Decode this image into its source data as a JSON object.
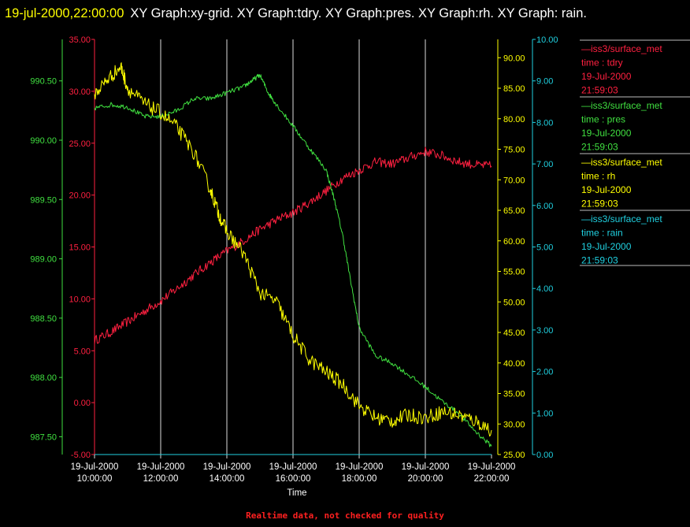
{
  "header": {
    "timestamp": "19-jul-2000,22:00:00",
    "graphs": "XY Graph:xy-grid.  XY Graph:tdry.  XY Graph:pres.  XY Graph:rh.  XY Graph: rain."
  },
  "footer": {
    "text": "Realtime data, not checked for quality"
  },
  "chart_data": {
    "type": "line",
    "xlabel": "Time",
    "x_tick_labels": [
      [
        "19-Jul-2000",
        "10:00:00"
      ],
      [
        "19-Jul-2000",
        "12:00:00"
      ],
      [
        "19-Jul-2000",
        "14:00:00"
      ],
      [
        "19-Jul-2000",
        "16:00:00"
      ],
      [
        "19-Jul-2000",
        "18:00:00"
      ],
      [
        "19-Jul-2000",
        "20:00:00"
      ],
      [
        "19-Jul-2000",
        "22:00:00"
      ]
    ],
    "x_hours": [
      10,
      12,
      14,
      16,
      18,
      20,
      22
    ],
    "xlim": [
      10,
      22
    ],
    "grid": true,
    "axes": {
      "tdry": {
        "ticks": [
          "35.00",
          "30.00",
          "25.00",
          "20.00",
          "15.00",
          "10.00",
          "5.00",
          "0.00",
          "-5.00"
        ],
        "ylim": [
          -5,
          35
        ],
        "color": "#ff2040"
      },
      "pres": {
        "ticks": [
          "990.50",
          "990.00",
          "989.50",
          "989.00",
          "988.50",
          "988.00",
          "987.50"
        ],
        "ylim": [
          987.35,
          990.85
        ],
        "color": "#40e040"
      },
      "rh": {
        "ticks": [
          "90.00",
          "85.00",
          "80.00",
          "75.00",
          "70.00",
          "65.00",
          "60.00",
          "55.00",
          "50.00",
          "45.00",
          "40.00",
          "35.00",
          "30.00",
          "25.00"
        ],
        "ylim": [
          25,
          93
        ],
        "color": "#ffff00"
      },
      "rain": {
        "ticks": [
          "10.00",
          "9.00",
          "8.00",
          "7.00",
          "6.00",
          "5.00",
          "4.00",
          "3.00",
          "2.00",
          "1.00",
          "0.00"
        ],
        "ylim": [
          0,
          10
        ],
        "color": "#20d0e0"
      }
    },
    "series": [
      {
        "key": "tdry",
        "color": "#ff2040",
        "points": [
          [
            10.0,
            6.0
          ],
          [
            10.5,
            6.8
          ],
          [
            11.0,
            7.8
          ],
          [
            11.5,
            8.8
          ],
          [
            12.0,
            9.8
          ],
          [
            12.5,
            11.0
          ],
          [
            13.0,
            12.3
          ],
          [
            13.5,
            13.5
          ],
          [
            14.0,
            14.6
          ],
          [
            14.5,
            15.6
          ],
          [
            15.0,
            16.7
          ],
          [
            15.5,
            17.6
          ],
          [
            16.0,
            18.3
          ],
          [
            16.5,
            19.3
          ],
          [
            17.0,
            20.4
          ],
          [
            17.5,
            21.6
          ],
          [
            18.0,
            22.4
          ],
          [
            18.5,
            23.2
          ],
          [
            19.0,
            23.0
          ],
          [
            19.5,
            23.6
          ],
          [
            20.0,
            24.2
          ],
          [
            20.5,
            23.8
          ],
          [
            21.0,
            23.2
          ],
          [
            21.5,
            22.9
          ],
          [
            22.0,
            22.8
          ]
        ]
      },
      {
        "key": "pres",
        "color": "#40e040",
        "points": [
          [
            10.0,
            990.27
          ],
          [
            10.5,
            990.3
          ],
          [
            11.0,
            990.28
          ],
          [
            11.5,
            990.2
          ],
          [
            12.0,
            990.2
          ],
          [
            12.5,
            990.25
          ],
          [
            13.0,
            990.35
          ],
          [
            13.5,
            990.35
          ],
          [
            14.0,
            990.4
          ],
          [
            14.5,
            990.45
          ],
          [
            14.75,
            990.5
          ],
          [
            15.0,
            990.55
          ],
          [
            15.25,
            990.4
          ],
          [
            15.5,
            990.3
          ],
          [
            16.0,
            990.12
          ],
          [
            16.5,
            989.93
          ],
          [
            17.0,
            989.75
          ],
          [
            17.25,
            989.5
          ],
          [
            17.5,
            989.2
          ],
          [
            17.75,
            988.8
          ],
          [
            18.0,
            988.42
          ],
          [
            18.5,
            988.18
          ],
          [
            19.0,
            988.12
          ],
          [
            19.5,
            988.02
          ],
          [
            20.0,
            987.92
          ],
          [
            20.5,
            987.8
          ],
          [
            21.0,
            987.7
          ],
          [
            21.5,
            987.55
          ],
          [
            22.0,
            987.42
          ]
        ]
      },
      {
        "key": "rh",
        "color": "#ffff00",
        "points": [
          [
            10.0,
            84.0
          ],
          [
            10.4,
            86.5
          ],
          [
            10.8,
            88.5
          ],
          [
            11.0,
            85.0
          ],
          [
            11.5,
            82.5
          ],
          [
            12.0,
            81.0
          ],
          [
            12.5,
            78.5
          ],
          [
            13.0,
            74.5
          ],
          [
            13.5,
            68.5
          ],
          [
            13.75,
            64.5
          ],
          [
            14.0,
            61.5
          ],
          [
            14.5,
            58.0
          ],
          [
            15.0,
            51.5
          ],
          [
            15.5,
            50.0
          ],
          [
            16.0,
            44.5
          ],
          [
            16.5,
            40.5
          ],
          [
            17.0,
            38.5
          ],
          [
            17.5,
            36.5
          ],
          [
            18.0,
            33.0
          ],
          [
            18.5,
            31.0
          ],
          [
            19.0,
            30.5
          ],
          [
            19.5,
            31.5
          ],
          [
            20.0,
            31.0
          ],
          [
            20.5,
            32.0
          ],
          [
            21.0,
            31.5
          ],
          [
            21.5,
            30.5
          ],
          [
            22.0,
            29.0
          ]
        ]
      },
      {
        "key": "rain",
        "color": "#20d0e0",
        "points": [
          [
            10.0,
            0.0
          ],
          [
            22.0,
            0.0
          ]
        ]
      }
    ],
    "legend": {
      "placement": "right",
      "entries": [
        {
          "lines": [
            "—iss3/surface_met",
            "time : tdry",
            "19-Jul-2000",
            "21:59:03"
          ],
          "color": "#ff2040"
        },
        {
          "lines": [
            "—iss3/surface_met",
            "time : pres",
            "19-Jul-2000",
            "21:59:03"
          ],
          "color": "#40e040"
        },
        {
          "lines": [
            "—iss3/surface_met",
            "time : rh",
            "19-Jul-2000",
            "21:59:03"
          ],
          "color": "#ffff00"
        },
        {
          "lines": [
            "—iss3/surface_met",
            "time : rain",
            "19-Jul-2000",
            "21:59:03"
          ],
          "color": "#20d0e0"
        }
      ]
    }
  }
}
